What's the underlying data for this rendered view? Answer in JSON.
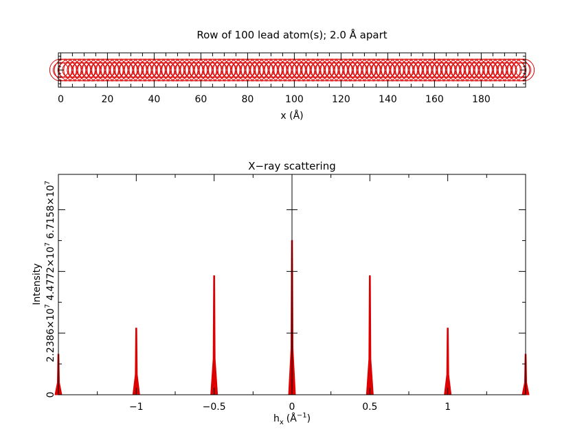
{
  "chart_data": [
    {
      "type": "scatter",
      "title": "Row of 100 lead atom(s); 2.0 Å apart",
      "xlabel": "x (Å)",
      "ylabel": "",
      "xlim": [
        -1,
        199
      ],
      "ylim": [
        -1,
        1
      ],
      "x_ticks": [
        0,
        20,
        40,
        60,
        80,
        100,
        120,
        140,
        160,
        180
      ],
      "x_tick_labels": [
        "0",
        "20",
        "40",
        "60",
        "80",
        "100",
        "120",
        "140",
        "160",
        "180"
      ],
      "atom_count": 100,
      "atom_spacing": 2.0,
      "marker": "open circle",
      "color": "#dd0000"
    },
    {
      "type": "line",
      "title": "X−ray scattering",
      "xlabel_main": "h",
      "xlabel_sub": "x",
      "xlabel_unit_prefix": "(Å",
      "xlabel_unit_exp": "−1",
      "xlabel_unit_suffix": ")",
      "ylabel": "Intensity",
      "xlim": [
        -1.5,
        1.5
      ],
      "ylim": [
        0,
        80000000
      ],
      "x_ticks": [
        -1,
        -0.5,
        0,
        0.5,
        1
      ],
      "x_tick_labels": [
        "−1",
        "−0.5",
        "0",
        "0.5",
        "1"
      ],
      "y_ticks": [
        0,
        22386000,
        44772000,
        67158000
      ],
      "y_tick_labels": [
        {
          "mantissa": "0",
          "exp": ""
        },
        {
          "mantissa": "2.2386×10",
          "exp": "7"
        },
        {
          "mantissa": "4.4772×10",
          "exp": "7"
        },
        {
          "mantissa": "6.7158×10",
          "exp": "7"
        }
      ],
      "peaks": [
        {
          "x": -1.5,
          "y": 14700000
        },
        {
          "x": -1.0,
          "y": 24200000
        },
        {
          "x": -0.5,
          "y": 43200000
        },
        {
          "x": 0.0,
          "y": 56000000
        },
        {
          "x": 0.5,
          "y": 43200000
        },
        {
          "x": 1.0,
          "y": 24200000
        },
        {
          "x": 1.5,
          "y": 14700000
        }
      ],
      "color": "#dd0000"
    }
  ]
}
